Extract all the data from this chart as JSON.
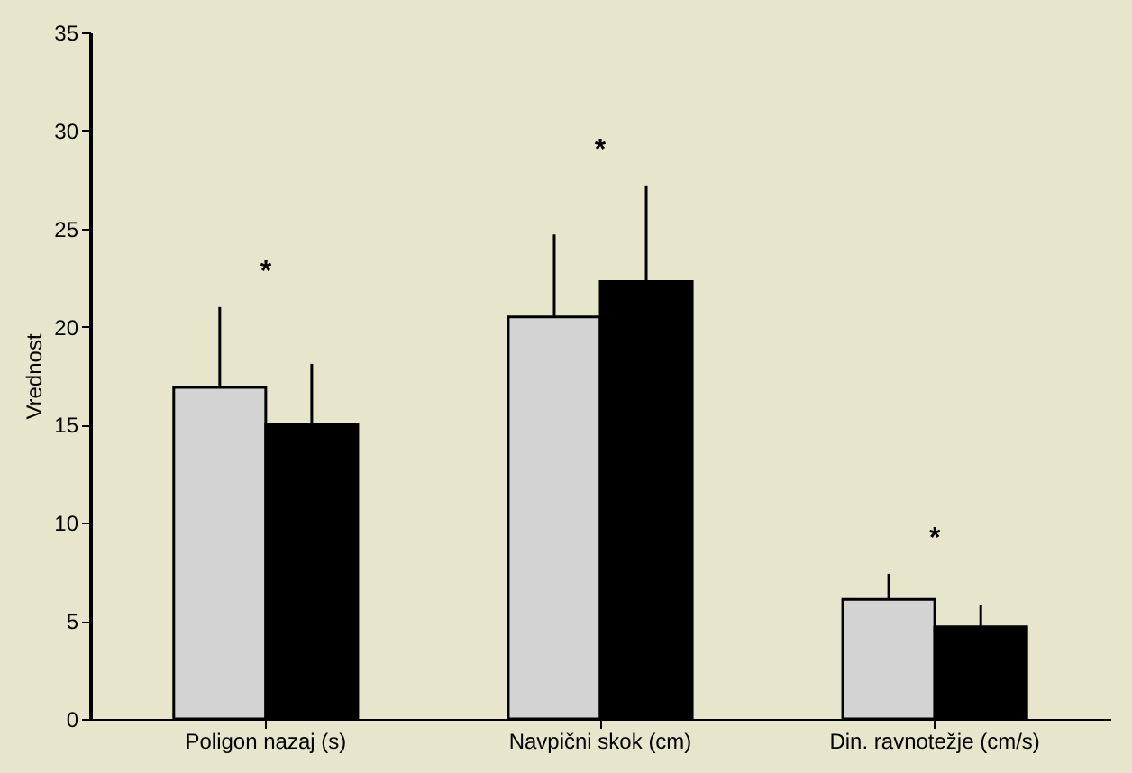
{
  "chart_data": {
    "type": "bar",
    "ylabel": "Vrednost",
    "categories": [
      "Poligon nazaj (s)",
      "Navpični skok (cm)",
      "Din. ravnotežje (cm/s)"
    ],
    "series": [
      {
        "color": "#d3d3d3",
        "values": [
          16.9,
          20.5,
          6.1
        ],
        "errors": [
          [
            16.9,
            21.0
          ],
          [
            20.5,
            24.7
          ],
          [
            6.1,
            7.4
          ]
        ]
      },
      {
        "color": "#000000",
        "values": [
          15.0,
          22.3,
          4.7
        ],
        "errors": [
          [
            15.0,
            18.1
          ],
          [
            22.3,
            27.2
          ],
          [
            4.7,
            5.8
          ]
        ]
      }
    ],
    "ylim": [
      0,
      35
    ],
    "yticks": [
      0,
      5,
      10,
      15,
      20,
      25,
      30,
      35
    ],
    "grid": false,
    "legend": false,
    "annotations": [
      "*",
      "*",
      "*"
    ]
  }
}
